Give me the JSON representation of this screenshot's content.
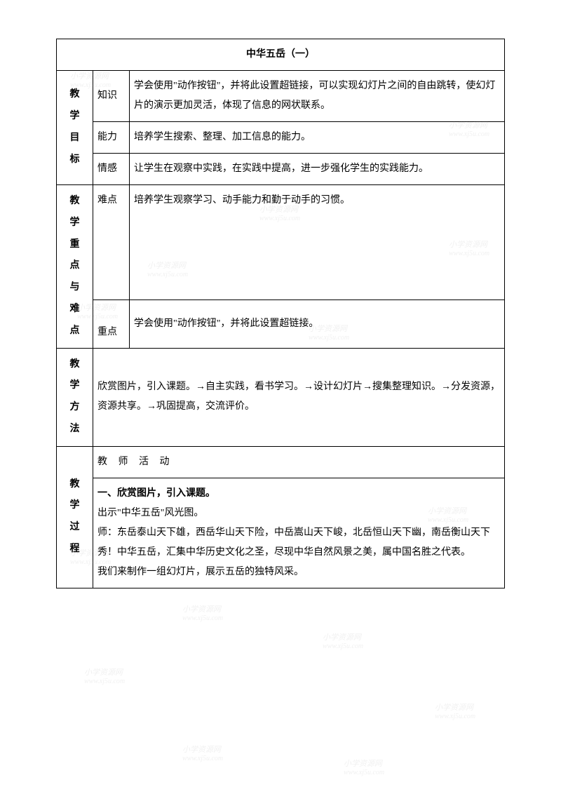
{
  "title": "中华五岳（一）",
  "sections": {
    "objectives": {
      "label": "教学目标",
      "rows": [
        {
          "sub": "知识",
          "content": "学会使用\"动作按钮\"，并将此设置超链接，可以实现幻灯片之间的自由跳转，使幻灯片的演示更加灵活，体现了信息的网状联系。"
        },
        {
          "sub": "能力",
          "content": "培养学生搜索、整理、加工信息的能力。"
        },
        {
          "sub": "情感",
          "content": "让学生在观察中实践，在实践中提高，进一步强化学生的实践能力。"
        }
      ]
    },
    "focus": {
      "label": "教学重点与难点",
      "rows": [
        {
          "sub": "难点",
          "content": "培养学生观察学习、动手能力和勤于动手的习惯。"
        },
        {
          "sub": "重点",
          "content": "学会使用\"动作按钮\"，并将此设置超链接。"
        }
      ]
    },
    "methods": {
      "label": "教学方法",
      "content": "欣赏图片，引入课题。→自主实践，看书学习。→设计幻灯片→搜集整理知识。→分发资源，资源共享。→巩固提高，交流评价。"
    },
    "process": {
      "label": "教学过程",
      "header": "教 师 活 动",
      "section1_title": "一、欣赏图片，引入课题。",
      "lines": [
        "出示\"中华五岳\"风光图。",
        "师：东岳泰山天下雄，西岳华山天下险，中岳嵩山天下峻，北岳恒山天下幽，南岳衡山天下秀！中华五岳，汇集中华历史文化之圣，尽现中华自然风景之美，属中国名胜之代表。",
        "我们来制作一组幻灯片，展示五岳的独特风采。"
      ]
    }
  },
  "watermark": {
    "line1": "小学资源网",
    "line2": "www.xj5u.com"
  },
  "styling": {
    "border_color": "#000000",
    "background_color": "#ffffff",
    "text_color": "#000000",
    "title_fontsize": 18,
    "body_fontsize": 14,
    "col1_width": 50,
    "col2_width": 50
  }
}
